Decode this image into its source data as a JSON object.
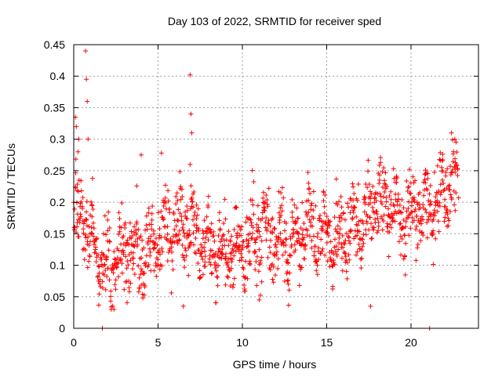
{
  "chart_data": {
    "type": "scatter",
    "title": "Day 103 of 2022, SRMTID for receiver sped",
    "xlabel": "GPS time / hours",
    "ylabel": "SRMTID / TECUs",
    "xlim": [
      0,
      24
    ],
    "ylim": [
      0,
      0.45
    ],
    "x_ticks": [
      0,
      5,
      10,
      15,
      20
    ],
    "y_ticks": [
      0,
      0.05,
      0.1,
      0.15,
      0.2,
      0.25,
      0.3,
      0.35,
      0.4,
      0.45
    ],
    "x_tick_labels": [
      "0",
      "5",
      "10",
      "15",
      "20"
    ],
    "y_tick_labels": [
      "0",
      "0.05",
      "0.1",
      "0.15",
      "0.2",
      "0.25",
      "0.3",
      "0.35",
      "0.4",
      "0.45"
    ],
    "grid": true,
    "marker": "+",
    "color": "#ff0000",
    "x_range_hours": [
      0,
      22.8
    ],
    "trend": [
      {
        "x": 0.0,
        "y": 0.14
      },
      {
        "x": 0.5,
        "y": 0.19
      },
      {
        "x": 1.0,
        "y": 0.14
      },
      {
        "x": 1.5,
        "y": 0.11
      },
      {
        "x": 2.0,
        "y": 0.09
      },
      {
        "x": 3.0,
        "y": 0.12
      },
      {
        "x": 4.0,
        "y": 0.12
      },
      {
        "x": 5.0,
        "y": 0.15
      },
      {
        "x": 6.0,
        "y": 0.16
      },
      {
        "x": 7.0,
        "y": 0.15
      },
      {
        "x": 8.0,
        "y": 0.13
      },
      {
        "x": 9.0,
        "y": 0.12
      },
      {
        "x": 10.0,
        "y": 0.13
      },
      {
        "x": 11.0,
        "y": 0.15
      },
      {
        "x": 12.0,
        "y": 0.14
      },
      {
        "x": 13.0,
        "y": 0.13
      },
      {
        "x": 14.0,
        "y": 0.16
      },
      {
        "x": 15.0,
        "y": 0.14
      },
      {
        "x": 16.0,
        "y": 0.15
      },
      {
        "x": 17.0,
        "y": 0.17
      },
      {
        "x": 18.0,
        "y": 0.2
      },
      {
        "x": 19.0,
        "y": 0.19
      },
      {
        "x": 20.0,
        "y": 0.18
      },
      {
        "x": 21.0,
        "y": 0.19
      },
      {
        "x": 22.0,
        "y": 0.22
      },
      {
        "x": 22.8,
        "y": 0.23
      }
    ],
    "spread": 0.05,
    "sample_count": 1400,
    "notable_points": [
      {
        "x": 0.7,
        "y": 0.44
      },
      {
        "x": 0.75,
        "y": 0.395
      },
      {
        "x": 0.8,
        "y": 0.36
      },
      {
        "x": 0.85,
        "y": 0.3
      },
      {
        "x": 0.1,
        "y": 0.335
      },
      {
        "x": 0.15,
        "y": 0.32
      },
      {
        "x": 0.3,
        "y": 0.3
      },
      {
        "x": 0.25,
        "y": 0.28
      },
      {
        "x": 6.9,
        "y": 0.402
      },
      {
        "x": 6.95,
        "y": 0.34
      },
      {
        "x": 7.0,
        "y": 0.31
      },
      {
        "x": 6.9,
        "y": 0.26
      },
      {
        "x": 4.0,
        "y": 0.275
      },
      {
        "x": 5.2,
        "y": 0.278
      },
      {
        "x": 1.7,
        "y": 0.0
      },
      {
        "x": 21.1,
        "y": 0.0
      },
      {
        "x": 22.4,
        "y": 0.31
      },
      {
        "x": 22.6,
        "y": 0.3
      },
      {
        "x": 17.6,
        "y": 0.035
      },
      {
        "x": 6.5,
        "y": 0.035
      },
      {
        "x": 11.0,
        "y": 0.045
      }
    ]
  }
}
